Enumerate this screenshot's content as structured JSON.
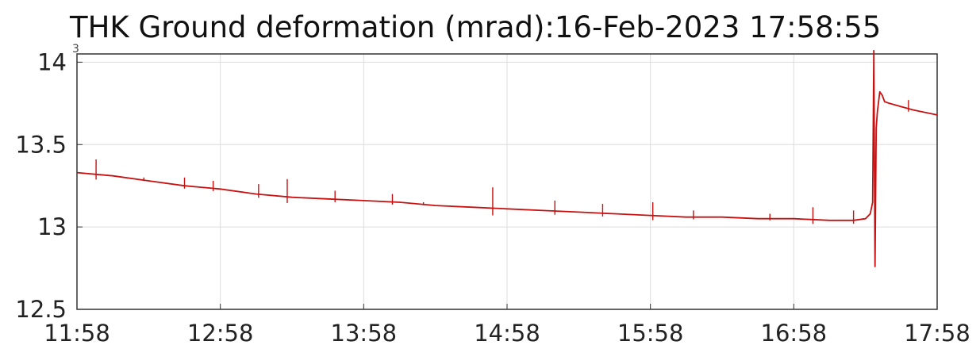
{
  "chart_data": {
    "type": "line",
    "title": "THK Ground deformation (mrad):16-Feb-2023 17:58:55",
    "exponent_label": "3",
    "xlabel": "",
    "ylabel": "",
    "x_tick_labels": [
      "11:58",
      "12:58",
      "13:58",
      "14:58",
      "15:58",
      "16:58",
      "17:58"
    ],
    "y_tick_labels": [
      "12.5",
      "13",
      "13.5",
      "14"
    ],
    "y_ticks": [
      12.5,
      13,
      13.5,
      14
    ],
    "xlim": [
      0,
      360
    ],
    "ylim": [
      12.5,
      14.05
    ],
    "grid": true,
    "line_color": "#c81010",
    "series": [
      {
        "x": [
          0,
          15,
          30,
          45,
          60,
          75,
          90,
          105,
          120,
          135,
          150,
          165,
          180,
          195,
          210,
          225,
          240,
          255,
          270,
          285,
          300,
          315,
          325,
          330,
          332,
          333,
          333.5,
          334,
          334.5,
          335,
          336,
          337,
          338,
          340,
          345,
          350,
          360
        ],
        "values": [
          13.33,
          13.31,
          13.28,
          13.25,
          13.23,
          13.2,
          13.18,
          13.17,
          13.16,
          13.15,
          13.13,
          13.12,
          13.11,
          13.1,
          13.09,
          13.08,
          13.07,
          13.06,
          13.06,
          13.05,
          13.05,
          13.04,
          13.04,
          13.05,
          13.08,
          13.15,
          14.07,
          12.76,
          13.6,
          13.7,
          13.82,
          13.8,
          13.76,
          13.75,
          13.73,
          13.71,
          13.68
        ],
        "spikes": [
          {
            "x": 8,
            "y": 13.41
          },
          {
            "x": 28,
            "y": 13.3
          },
          {
            "x": 45,
            "y": 13.3
          },
          {
            "x": 57,
            "y": 13.28
          },
          {
            "x": 76,
            "y": 13.26
          },
          {
            "x": 88,
            "y": 13.29
          },
          {
            "x": 108,
            "y": 13.22
          },
          {
            "x": 132,
            "y": 13.2
          },
          {
            "x": 145,
            "y": 13.15
          },
          {
            "x": 174,
            "y": 13.24
          },
          {
            "x": 200,
            "y": 13.16
          },
          {
            "x": 220,
            "y": 13.14
          },
          {
            "x": 241,
            "y": 13.15
          },
          {
            "x": 258,
            "y": 13.1
          },
          {
            "x": 290,
            "y": 13.08
          },
          {
            "x": 308,
            "y": 13.12
          },
          {
            "x": 325,
            "y": 13.1
          },
          {
            "x": 348,
            "y": 13.77
          }
        ]
      }
    ]
  }
}
